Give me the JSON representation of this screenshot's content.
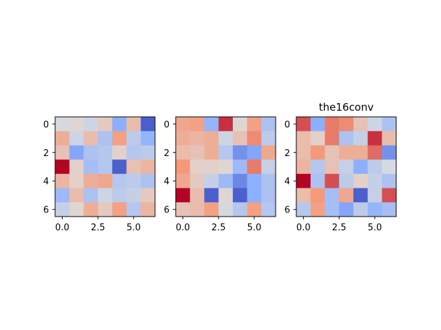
{
  "chart_data": [
    {
      "type": "heatmap",
      "title": "",
      "xlabel": "",
      "ylabel": "",
      "colormap": "coolwarm",
      "value_range": [
        -1,
        1
      ],
      "x_ticks": [
        "0.0",
        "2.5",
        "5.0"
      ],
      "x_tick_values": [
        0,
        2.5,
        5
      ],
      "y_ticks": [
        "0",
        "2",
        "4",
        "6"
      ],
      "y_tick_values": [
        0,
        2,
        4,
        6
      ],
      "xlim": [
        -0.5,
        6.5
      ],
      "ylim": [
        6.5,
        -0.5
      ],
      "values": [
        [
          -0.05,
          0.05,
          -0.1,
          0.15,
          -0.5,
          0.25,
          -0.9
        ],
        [
          0.35,
          -0.1,
          0.25,
          -0.3,
          0.45,
          -0.2,
          -0.45
        ],
        [
          0.2,
          -0.55,
          -0.3,
          -0.25,
          0.1,
          -0.25,
          -0.2
        ],
        [
          1.0,
          0.1,
          -0.35,
          -0.25,
          -0.9,
          0.2,
          0.3
        ],
        [
          0.3,
          0.1,
          0.35,
          0.4,
          -0.25,
          -0.2,
          -0.3
        ],
        [
          -0.4,
          0.25,
          -0.3,
          -0.1,
          -0.2,
          -0.15,
          0.15
        ],
        [
          -0.15,
          0.05,
          0.35,
          0.15,
          0.45,
          -0.25,
          0.3
        ]
      ]
    },
    {
      "type": "heatmap",
      "title": "",
      "xlabel": "",
      "ylabel": "",
      "colormap": "coolwarm",
      "value_range": [
        -1,
        1
      ],
      "x_ticks": [
        "0.0",
        "2.5",
        "5.0"
      ],
      "x_tick_values": [
        0,
        2.5,
        5
      ],
      "y_ticks": [
        "0",
        "2",
        "4",
        "6"
      ],
      "y_tick_values": [
        0,
        2,
        4,
        6
      ],
      "xlim": [
        -0.5,
        6.5
      ],
      "ylim": [
        6.5,
        -0.5
      ],
      "values": [
        [
          0.4,
          0.45,
          -0.45,
          0.85,
          0.05,
          0.45,
          -0.3
        ],
        [
          0.35,
          0.3,
          0.35,
          -0.1,
          0.2,
          0.55,
          -0.2
        ],
        [
          0.25,
          0.2,
          0.35,
          -0.25,
          -0.65,
          -0.55,
          0.4
        ],
        [
          0.5,
          0.1,
          0.1,
          0.05,
          -0.4,
          0.6,
          -0.15
        ],
        [
          0.4,
          0.15,
          -0.15,
          -0.4,
          -0.7,
          -0.5,
          -0.3
        ],
        [
          1.0,
          0.25,
          -0.9,
          0.05,
          -0.9,
          -0.5,
          -0.3
        ],
        [
          0.2,
          0.25,
          0.45,
          -0.05,
          -0.25,
          0.45,
          -0.25
        ]
      ]
    },
    {
      "type": "heatmap",
      "title": "the16conv",
      "xlabel": "",
      "ylabel": "",
      "colormap": "coolwarm",
      "value_range": [
        -1,
        1
      ],
      "x_ticks": [
        "0.0",
        "2.5",
        "5.0"
      ],
      "x_tick_values": [
        0,
        2.5,
        5
      ],
      "y_ticks": [
        "0",
        "2",
        "4",
        "6"
      ],
      "y_tick_values": [
        0,
        2,
        4,
        6
      ],
      "xlim": [
        -0.5,
        6.5
      ],
      "ylim": [
        6.5,
        -0.5
      ],
      "values": [
        [
          0.75,
          -0.5,
          0.6,
          0.55,
          0.2,
          -0.1,
          -0.3
        ],
        [
          0.25,
          0.1,
          0.6,
          -0.3,
          -0.15,
          0.85,
          0.25
        ],
        [
          0.25,
          0.5,
          0.2,
          0.35,
          0.35,
          0.65,
          -0.65
        ],
        [
          0.3,
          -0.25,
          0.2,
          -0.15,
          -0.5,
          -0.2,
          -0.05
        ],
        [
          1.0,
          -0.3,
          0.75,
          -0.2,
          0.1,
          -0.15,
          -0.3
        ],
        [
          0.25,
          0.5,
          -0.35,
          0.4,
          -0.9,
          -0.15,
          0.75
        ],
        [
          -0.25,
          0.45,
          -0.35,
          -0.55,
          -0.2,
          -0.45,
          -0.35
        ]
      ]
    }
  ]
}
